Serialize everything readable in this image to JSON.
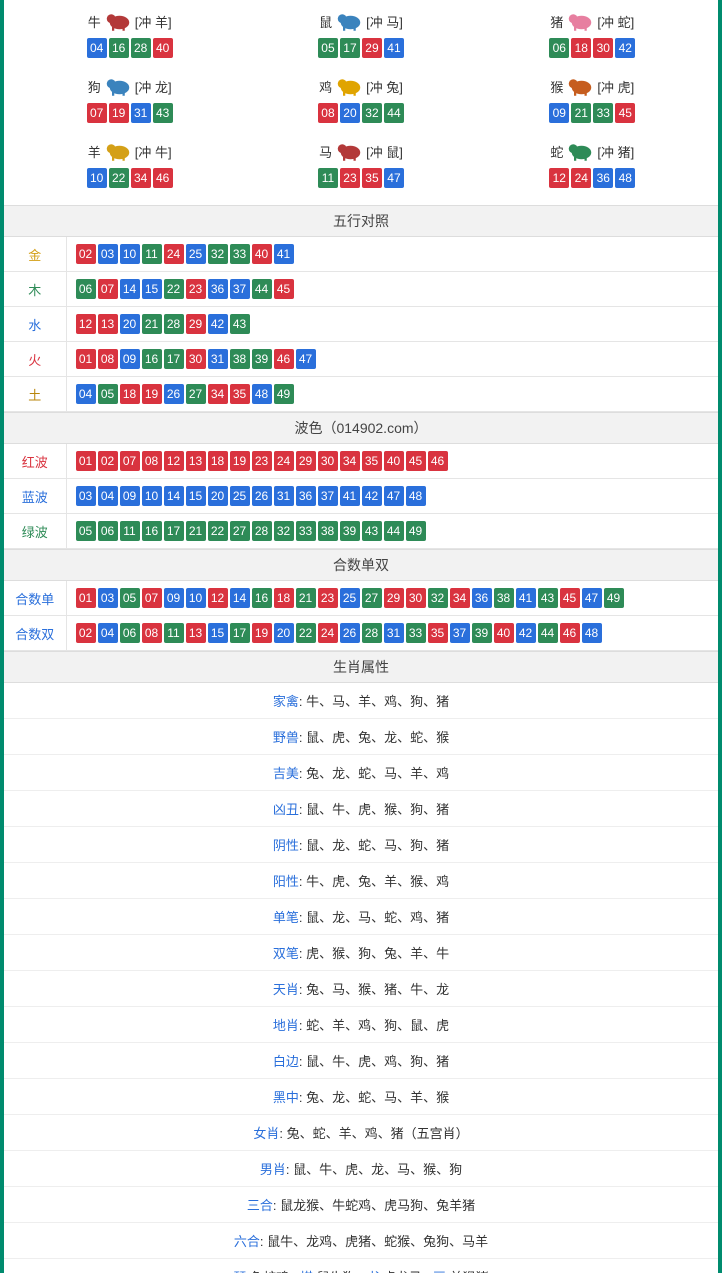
{
  "colors": {
    "red": "#d9333f",
    "blue": "#2a6fdb",
    "green": "#2e8b57",
    "border": "#008b6e"
  },
  "numberColorMap": {
    "01": "red",
    "02": "red",
    "07": "red",
    "08": "red",
    "12": "red",
    "13": "red",
    "18": "red",
    "19": "red",
    "23": "red",
    "24": "red",
    "29": "red",
    "30": "red",
    "34": "red",
    "35": "red",
    "40": "red",
    "45": "red",
    "46": "red",
    "03": "blue",
    "04": "blue",
    "09": "blue",
    "10": "blue",
    "14": "blue",
    "15": "blue",
    "20": "blue",
    "25": "blue",
    "26": "blue",
    "31": "blue",
    "36": "blue",
    "37": "blue",
    "41": "blue",
    "42": "blue",
    "47": "blue",
    "48": "blue",
    "05": "green",
    "06": "green",
    "11": "green",
    "16": "green",
    "17": "green",
    "21": "green",
    "22": "green",
    "27": "green",
    "28": "green",
    "32": "green",
    "33": "green",
    "38": "green",
    "39": "green",
    "43": "green",
    "44": "green",
    "49": "green"
  },
  "zodiac": [
    {
      "name": "牛",
      "clash": "[冲 羊]",
      "nums": [
        "04",
        "16",
        "28",
        "40"
      ],
      "svgColor": "#b33939"
    },
    {
      "name": "鼠",
      "clash": "[冲 马]",
      "nums": [
        "05",
        "17",
        "29",
        "41"
      ],
      "svgColor": "#3b83bd"
    },
    {
      "name": "猪",
      "clash": "[冲 蛇]",
      "nums": [
        "06",
        "18",
        "30",
        "42"
      ],
      "svgColor": "#e77fa0"
    },
    {
      "name": "狗",
      "clash": "[冲 龙]",
      "nums": [
        "07",
        "19",
        "31",
        "43"
      ],
      "svgColor": "#3b83bd"
    },
    {
      "name": "鸡",
      "clash": "[冲 兔]",
      "nums": [
        "08",
        "20",
        "32",
        "44"
      ],
      "svgColor": "#e0a400"
    },
    {
      "name": "猴",
      "clash": "[冲 虎]",
      "nums": [
        "09",
        "21",
        "33",
        "45"
      ],
      "svgColor": "#c65d1e"
    },
    {
      "name": "羊",
      "clash": "[冲 牛]",
      "nums": [
        "10",
        "22",
        "34",
        "46"
      ],
      "svgColor": "#d4a017"
    },
    {
      "name": "马",
      "clash": "[冲 鼠]",
      "nums": [
        "11",
        "23",
        "35",
        "47"
      ],
      "svgColor": "#b33939"
    },
    {
      "name": "蛇",
      "clash": "[冲 猪]",
      "nums": [
        "12",
        "24",
        "36",
        "48"
      ],
      "svgColor": "#2e8b57"
    }
  ],
  "sections": {
    "wuxing": {
      "title": "五行对照",
      "rows": [
        {
          "label": "金",
          "cls": "lbl-gold",
          "nums": [
            "02",
            "03",
            "10",
            "11",
            "24",
            "25",
            "32",
            "33",
            "40",
            "41"
          ]
        },
        {
          "label": "木",
          "cls": "lbl-wood",
          "nums": [
            "06",
            "07",
            "14",
            "15",
            "22",
            "23",
            "36",
            "37",
            "44",
            "45"
          ]
        },
        {
          "label": "水",
          "cls": "lbl-water",
          "nums": [
            "12",
            "13",
            "20",
            "21",
            "28",
            "29",
            "42",
            "43"
          ]
        },
        {
          "label": "火",
          "cls": "lbl-fire",
          "nums": [
            "01",
            "08",
            "09",
            "16",
            "17",
            "30",
            "31",
            "38",
            "39",
            "46",
            "47"
          ]
        },
        {
          "label": "土",
          "cls": "lbl-earth",
          "nums": [
            "04",
            "05",
            "18",
            "19",
            "26",
            "27",
            "34",
            "35",
            "48",
            "49"
          ]
        }
      ]
    },
    "bose": {
      "title": "波色（014902.com）",
      "rows": [
        {
          "label": "红波",
          "cls": "lbl-red",
          "nums": [
            "01",
            "02",
            "07",
            "08",
            "12",
            "13",
            "18",
            "19",
            "23",
            "24",
            "29",
            "30",
            "34",
            "35",
            "40",
            "45",
            "46"
          ]
        },
        {
          "label": "蓝波",
          "cls": "lbl-blue",
          "nums": [
            "03",
            "04",
            "09",
            "10",
            "14",
            "15",
            "20",
            "25",
            "26",
            "31",
            "36",
            "37",
            "41",
            "42",
            "47",
            "48"
          ]
        },
        {
          "label": "绿波",
          "cls": "lbl-green",
          "nums": [
            "05",
            "06",
            "11",
            "16",
            "17",
            "21",
            "22",
            "27",
            "28",
            "32",
            "33",
            "38",
            "39",
            "43",
            "44",
            "49"
          ]
        }
      ]
    },
    "heshu": {
      "title": "合数单双",
      "rows": [
        {
          "label": "合数单",
          "cls": "lbl-blue",
          "nums": [
            "01",
            "03",
            "05",
            "07",
            "09",
            "10",
            "12",
            "14",
            "16",
            "18",
            "21",
            "23",
            "25",
            "27",
            "29",
            "30",
            "32",
            "34",
            "36",
            "38",
            "41",
            "43",
            "45",
            "47",
            "49"
          ]
        },
        {
          "label": "合数双",
          "cls": "lbl-blue",
          "nums": [
            "02",
            "04",
            "06",
            "08",
            "11",
            "13",
            "15",
            "17",
            "19",
            "20",
            "22",
            "24",
            "26",
            "28",
            "31",
            "33",
            "35",
            "37",
            "39",
            "40",
            "42",
            "44",
            "46",
            "48"
          ]
        }
      ]
    },
    "attrs": {
      "title": "生肖属性",
      "rows": [
        {
          "key": "家禽",
          "val": "牛、马、羊、鸡、狗、猪"
        },
        {
          "key": "野兽",
          "val": "鼠、虎、兔、龙、蛇、猴"
        },
        {
          "key": "吉美",
          "val": "兔、龙、蛇、马、羊、鸡"
        },
        {
          "key": "凶丑",
          "val": "鼠、牛、虎、猴、狗、猪"
        },
        {
          "key": "阴性",
          "val": "鼠、龙、蛇、马、狗、猪"
        },
        {
          "key": "阳性",
          "val": "牛、虎、兔、羊、猴、鸡"
        },
        {
          "key": "单笔",
          "val": "鼠、龙、马、蛇、鸡、猪"
        },
        {
          "key": "双笔",
          "val": "虎、猴、狗、兔、羊、牛"
        },
        {
          "key": "天肖",
          "val": "兔、马、猴、猪、牛、龙"
        },
        {
          "key": "地肖",
          "val": "蛇、羊、鸡、狗、鼠、虎"
        },
        {
          "key": "白边",
          "val": "鼠、牛、虎、鸡、狗、猪"
        },
        {
          "key": "黑中",
          "val": "兔、龙、蛇、马、羊、猴"
        },
        {
          "key": "女肖",
          "val": "兔、蛇、羊、鸡、猪（五宫肖）"
        },
        {
          "key": "男肖",
          "val": "鼠、牛、虎、龙、马、猴、狗"
        },
        {
          "key": "三合",
          "val": "鼠龙猴、牛蛇鸡、虎马狗、兔羊猪"
        },
        {
          "key": "六合",
          "val": "鼠牛、龙鸡、虎猪、蛇猴、兔狗、马羊"
        }
      ],
      "footer": {
        "parts": [
          {
            "k": "琴",
            "v": "兔蛇鸡"
          },
          {
            "k": "棋",
            "v": "鼠牛狗"
          },
          {
            "k": "书",
            "v": "虎龙马"
          },
          {
            "k": "画",
            "v": "羊猴猪"
          }
        ]
      }
    }
  }
}
